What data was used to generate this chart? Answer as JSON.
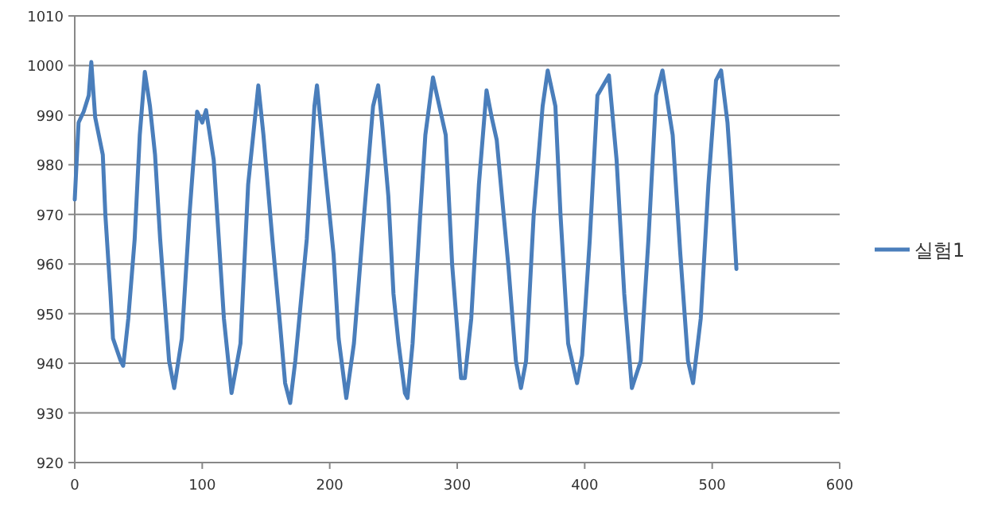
{
  "chart_data": {
    "type": "line",
    "x": [
      0,
      3,
      7,
      11,
      13,
      16,
      22,
      24,
      28,
      30,
      36,
      38,
      42,
      47,
      51,
      55,
      59,
      63,
      67,
      74,
      78,
      84,
      90,
      96,
      100,
      103,
      109,
      113,
      117,
      123,
      130,
      136,
      144,
      148,
      155,
      161,
      165,
      169,
      173,
      182,
      188,
      190,
      196,
      203,
      207,
      213,
      219,
      227,
      234,
      238,
      241,
      246,
      250,
      254,
      259,
      261,
      265,
      271,
      275,
      281,
      291,
      296,
      303,
      306,
      311,
      317,
      323,
      327,
      331,
      340,
      346,
      350,
      354,
      360,
      367,
      371,
      377,
      381,
      387,
      394,
      398,
      404,
      410,
      419,
      425,
      431,
      437,
      444,
      450,
      456,
      461,
      469,
      475,
      481,
      485,
      491,
      497,
      503,
      507,
      512,
      514,
      519
    ],
    "series": [
      {
        "name": "실험1",
        "color": "#4a7ebb",
        "values": [
          973,
          988.5,
          990.7,
          994,
          1000.7,
          989.6,
          982,
          970,
          954,
          945,
          940.5,
          939.5,
          949,
          965,
          986,
          998.7,
          991.8,
          982,
          965,
          940.5,
          935,
          945,
          970,
          990.7,
          988.5,
          991,
          981,
          965,
          949,
          934,
          944,
          976,
          996,
          986,
          965,
          948,
          936,
          932,
          940.5,
          965,
          991.8,
          996,
          980,
          962,
          945,
          933,
          944,
          970,
          991.8,
          996,
          988.5,
          973.6,
          954,
          944,
          934,
          933,
          944,
          970,
          986,
          997.6,
          986,
          960,
          937,
          937,
          949,
          976,
          995,
          989.6,
          985,
          960,
          940.5,
          935,
          940.5,
          970,
          991.8,
          999,
          991.8,
          970,
          944,
          936,
          941.6,
          965,
          994,
          998,
          981,
          954,
          935,
          940.5,
          965,
          994,
          999,
          986,
          962,
          940.5,
          936,
          949,
          976,
          997,
          999,
          988.5,
          981,
          959
        ]
      }
    ],
    "xlim": [
      0,
      600
    ],
    "ylim": [
      920,
      1010
    ],
    "xticks": [
      0,
      100,
      200,
      300,
      400,
      500,
      600
    ],
    "yticks": [
      920,
      930,
      940,
      950,
      960,
      970,
      980,
      990,
      1000,
      1010
    ],
    "grid": "y",
    "legend": "right",
    "marker": "none",
    "line_style": "solid"
  }
}
